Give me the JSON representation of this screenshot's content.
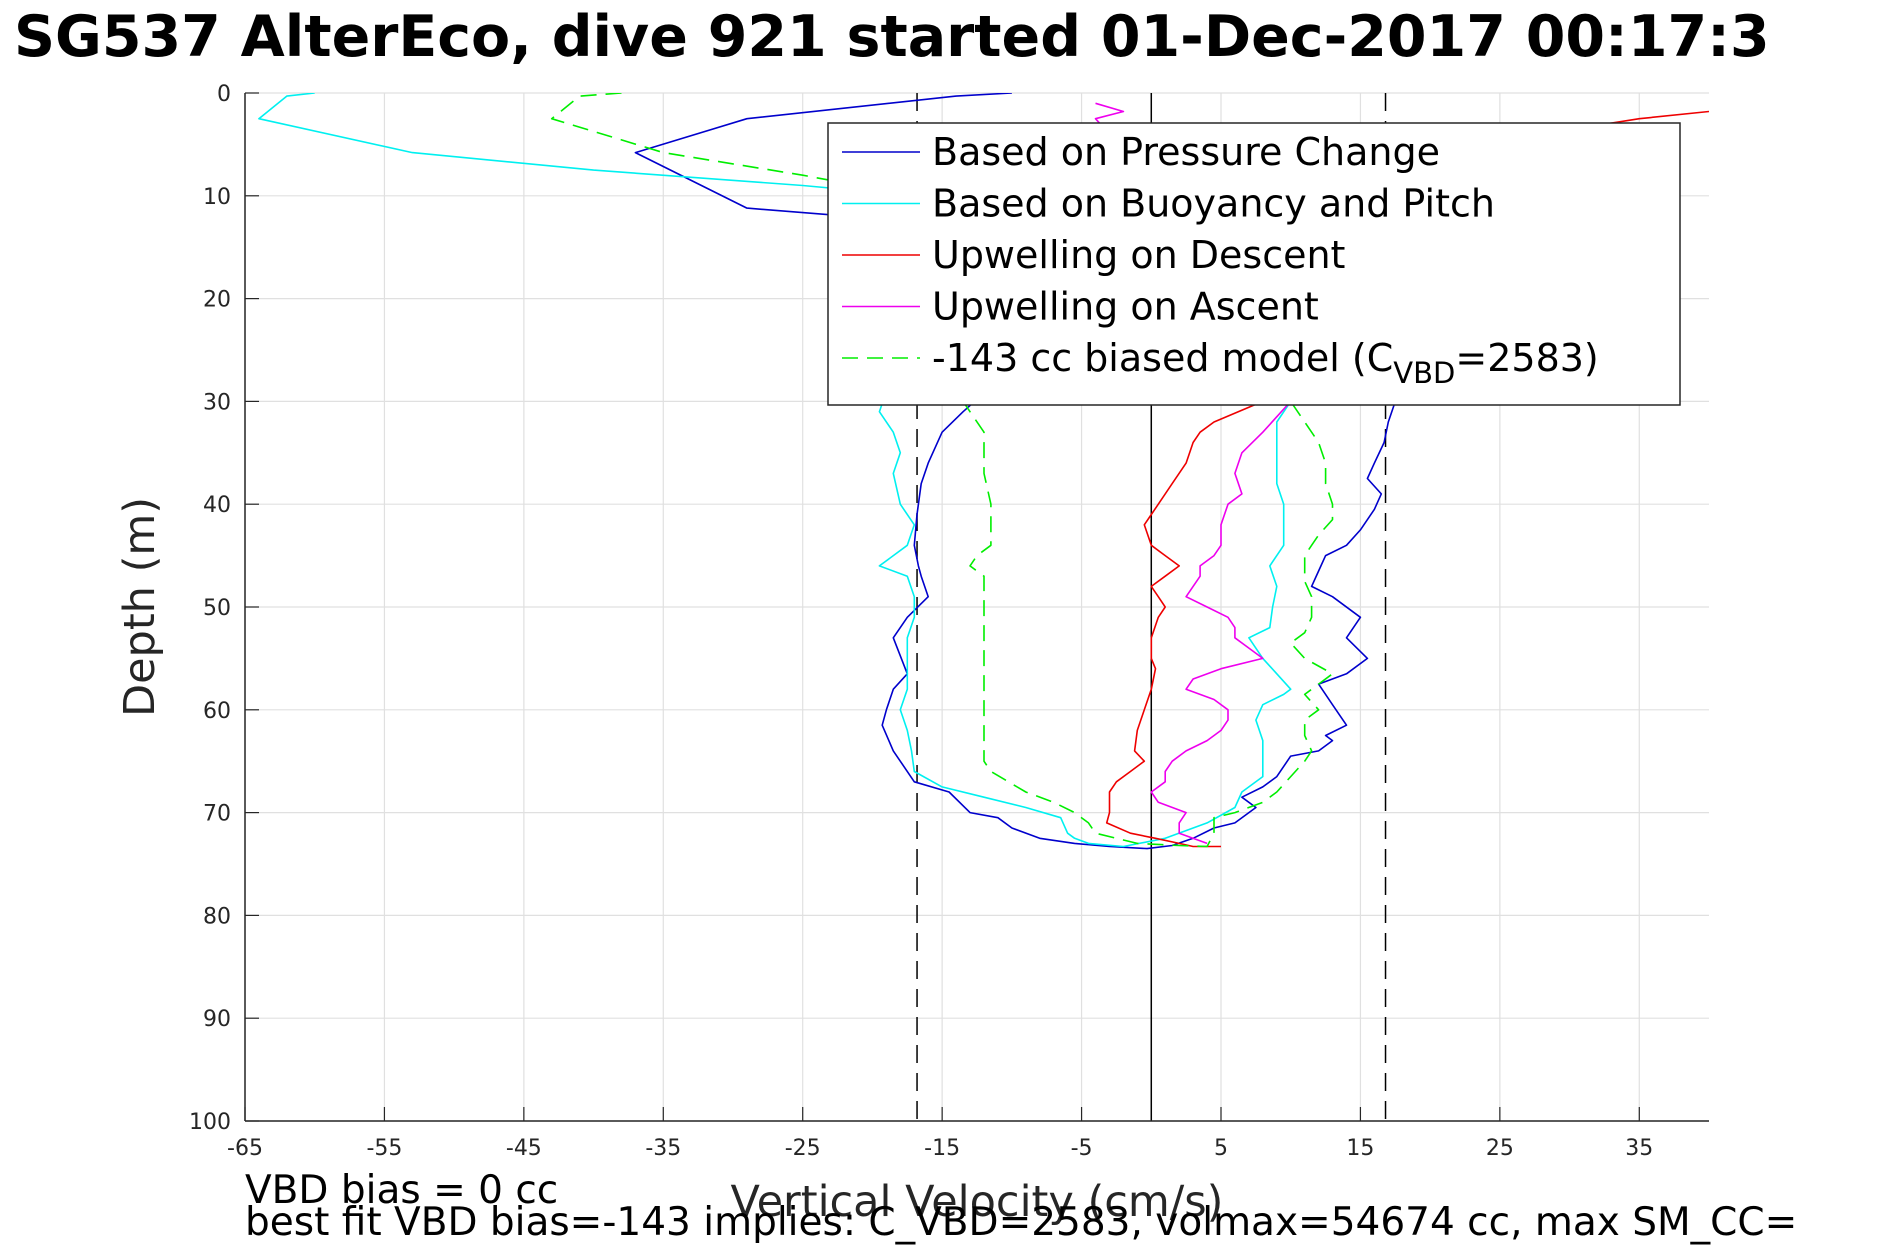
{
  "figure": {
    "title": "SG537 AlterEco, dive 921 started 01-Dec-2017 00:17:3",
    "footnote_1": "VBD bias = 0 cc",
    "footnote_2": "best fit VBD bias=-143 implies: C_VBD=2583, volmax=54674 cc, max SM_CC="
  },
  "chart_data": {
    "type": "line",
    "xlabel": "Vertical Velocity (cm/s)",
    "ylabel": "Depth (m)",
    "xlim": [
      -65,
      40
    ],
    "ylim": [
      0,
      100
    ],
    "y_reversed": true,
    "grid": true,
    "legend_position": "top-right",
    "xticks": [
      -65,
      -55,
      -45,
      -35,
      -25,
      -15,
      -5,
      5,
      15,
      25,
      35
    ],
    "yticks": [
      0,
      10,
      20,
      30,
      40,
      50,
      60,
      70,
      80,
      90,
      100
    ],
    "reference_lines": [
      {
        "x": -16.8,
        "style": "dashed",
        "color": "#000000"
      },
      {
        "x": 0,
        "style": "solid",
        "color": "#000000"
      },
      {
        "x": 16.8,
        "style": "dashed",
        "color": "#000000"
      }
    ],
    "series": [
      {
        "name": "Based on Pressure Change",
        "color": "#0000cc",
        "dash": "solid",
        "points": [
          [
            -10,
            0
          ],
          [
            -14,
            0.3
          ],
          [
            -29,
            2.5
          ],
          [
            -37,
            5.8
          ],
          [
            -29,
            11.2
          ],
          [
            -17,
            12.5
          ],
          [
            -13,
            14
          ],
          [
            -11,
            28
          ],
          [
            -13.5,
            31
          ],
          [
            -15,
            33
          ],
          [
            -16,
            36
          ],
          [
            -16.5,
            38
          ],
          [
            -16.8,
            41
          ],
          [
            -17,
            44
          ],
          [
            -16.7,
            46
          ],
          [
            -16.5,
            47
          ],
          [
            -16,
            49
          ],
          [
            -17.5,
            51
          ],
          [
            -18.5,
            53
          ],
          [
            -17.5,
            56.5
          ],
          [
            -18.5,
            58
          ],
          [
            -19,
            60
          ],
          [
            -19.3,
            61.5
          ],
          [
            -18.5,
            64
          ],
          [
            -17,
            67
          ],
          [
            -14.5,
            68
          ],
          [
            -13,
            70
          ],
          [
            -11,
            70.5
          ],
          [
            -10,
            71.5
          ],
          [
            -8,
            72.5
          ],
          [
            -5.5,
            73
          ],
          [
            -3,
            73.3
          ],
          [
            -0.3,
            73.5
          ],
          [
            1.5,
            73.2
          ],
          [
            3,
            72.5
          ],
          [
            4.5,
            71.5
          ],
          [
            6,
            71
          ],
          [
            7,
            70
          ],
          [
            7.5,
            69.5
          ],
          [
            6.5,
            68.5
          ],
          [
            8,
            67.5
          ],
          [
            9,
            66.5
          ],
          [
            10,
            64.5
          ],
          [
            12,
            64
          ],
          [
            13,
            63
          ],
          [
            12.5,
            62.5
          ],
          [
            14,
            61.5
          ],
          [
            13,
            59.5
          ],
          [
            12,
            57.5
          ],
          [
            14,
            56.5
          ],
          [
            15.5,
            55
          ],
          [
            14,
            53
          ],
          [
            15,
            51
          ],
          [
            13,
            49
          ],
          [
            11.5,
            48
          ],
          [
            12,
            46.5
          ],
          [
            12.5,
            45
          ],
          [
            14,
            44
          ],
          [
            15,
            42.5
          ],
          [
            16,
            40.5
          ],
          [
            16.5,
            39
          ],
          [
            15.5,
            37.5
          ],
          [
            16,
            36
          ],
          [
            16.7,
            34
          ],
          [
            17,
            32
          ],
          [
            17.5,
            30
          ]
        ]
      },
      {
        "name": "Based on Buoyancy and Pitch",
        "color": "#00f0f0",
        "dash": "solid",
        "points": [
          [
            -60,
            0
          ],
          [
            -62,
            0.3
          ],
          [
            -64,
            2.5
          ],
          [
            -53,
            5.8
          ],
          [
            -40,
            7.5
          ],
          [
            -25,
            9
          ],
          [
            -17,
            10
          ],
          [
            -12,
            11
          ],
          [
            -16,
            27
          ],
          [
            -19,
            29
          ],
          [
            -19.5,
            31
          ],
          [
            -18.5,
            33
          ],
          [
            -18,
            35
          ],
          [
            -18.5,
            37
          ],
          [
            -18,
            40
          ],
          [
            -17,
            42
          ],
          [
            -17.5,
            44
          ],
          [
            -19.5,
            46
          ],
          [
            -17.5,
            47
          ],
          [
            -17,
            49
          ],
          [
            -17,
            51
          ],
          [
            -17.5,
            53
          ],
          [
            -17.5,
            56
          ],
          [
            -17.5,
            58
          ],
          [
            -18,
            60
          ],
          [
            -17.5,
            62
          ],
          [
            -17.2,
            64
          ],
          [
            -17,
            66
          ],
          [
            -15,
            67.5
          ],
          [
            -12,
            68.5
          ],
          [
            -9,
            69.5
          ],
          [
            -6.5,
            70.5
          ],
          [
            -6,
            72
          ],
          [
            -5.5,
            72.5
          ],
          [
            -4.5,
            73
          ],
          [
            -2,
            73.3
          ],
          [
            1,
            72.5
          ],
          [
            4,
            71
          ],
          [
            6,
            69.5
          ],
          [
            6.5,
            68
          ],
          [
            8,
            66.5
          ],
          [
            8,
            64.5
          ],
          [
            8,
            63
          ],
          [
            7.5,
            61
          ],
          [
            8,
            59.5
          ],
          [
            9.5,
            58.5
          ],
          [
            10,
            58
          ],
          [
            9,
            56.5
          ],
          [
            8,
            55
          ],
          [
            7,
            53
          ],
          [
            8.5,
            52
          ],
          [
            8.7,
            50
          ],
          [
            9,
            48
          ],
          [
            8.5,
            46
          ],
          [
            9.5,
            44
          ],
          [
            9.5,
            42
          ],
          [
            9.5,
            40
          ],
          [
            9,
            38
          ],
          [
            9,
            36
          ],
          [
            9,
            34
          ],
          [
            9,
            32
          ],
          [
            10,
            30
          ]
        ]
      },
      {
        "name": "Upwelling on Descent",
        "color": "#ee0000",
        "dash": "solid",
        "points": [
          [
            40,
            1.8
          ],
          [
            35,
            2.5
          ],
          [
            28,
            4
          ],
          [
            22,
            6.5
          ],
          [
            16,
            15
          ],
          [
            8,
            30
          ],
          [
            4.5,
            32
          ],
          [
            3.5,
            33
          ],
          [
            3,
            34
          ],
          [
            2.5,
            36
          ],
          [
            1.5,
            38
          ],
          [
            0.5,
            40
          ],
          [
            0,
            41
          ],
          [
            -0.5,
            42
          ],
          [
            0,
            44
          ],
          [
            1,
            45
          ],
          [
            2,
            46
          ],
          [
            1,
            47
          ],
          [
            0,
            48
          ],
          [
            0.5,
            49
          ],
          [
            1,
            50
          ],
          [
            0.5,
            51
          ],
          [
            0,
            53
          ],
          [
            0,
            55
          ],
          [
            0.3,
            56
          ],
          [
            0,
            58
          ],
          [
            -0.5,
            60
          ],
          [
            -1,
            62
          ],
          [
            -1.2,
            64
          ],
          [
            -0.5,
            65
          ],
          [
            -1.5,
            66
          ],
          [
            -2.5,
            67
          ],
          [
            -3,
            68
          ],
          [
            -3,
            69
          ],
          [
            -3,
            70
          ],
          [
            -3.2,
            71
          ],
          [
            -1.5,
            72
          ],
          [
            0.3,
            72.5
          ],
          [
            2,
            73
          ],
          [
            3,
            73.3
          ],
          [
            5,
            73.3
          ]
        ]
      },
      {
        "name": "Upwelling on Ascent",
        "color": "#ee00ee",
        "dash": "solid",
        "points": [
          [
            -4,
            1
          ],
          [
            -2,
            1.8
          ],
          [
            -4,
            2.5
          ],
          [
            -3,
            4
          ],
          [
            0,
            20
          ],
          [
            10,
            30
          ],
          [
            8,
            33
          ],
          [
            6.5,
            35
          ],
          [
            6,
            37
          ],
          [
            6.5,
            39
          ],
          [
            5.5,
            40
          ],
          [
            5,
            42
          ],
          [
            5,
            44
          ],
          [
            4.5,
            45
          ],
          [
            3.5,
            46
          ],
          [
            3.5,
            47
          ],
          [
            3,
            48
          ],
          [
            2.5,
            49
          ],
          [
            4,
            50
          ],
          [
            5.5,
            51
          ],
          [
            6,
            52
          ],
          [
            6,
            53
          ],
          [
            7,
            54
          ],
          [
            8,
            55
          ],
          [
            5,
            56
          ],
          [
            3,
            57
          ],
          [
            2.5,
            58
          ],
          [
            4.5,
            59
          ],
          [
            5.5,
            60
          ],
          [
            5.5,
            61
          ],
          [
            5,
            62
          ],
          [
            4,
            63
          ],
          [
            2.5,
            64
          ],
          [
            1.5,
            65
          ],
          [
            1,
            66
          ],
          [
            1,
            67
          ],
          [
            0,
            68
          ],
          [
            0.5,
            69
          ],
          [
            2.5,
            70
          ],
          [
            2,
            71
          ],
          [
            2,
            72
          ],
          [
            4,
            73
          ]
        ]
      },
      {
        "name": "-143 cc biased model (C",
        "name_subscript": "VBD",
        "name_suffix": "=2583)",
        "color": "#00ee00",
        "dash": "dashed",
        "points": [
          [
            -38,
            0
          ],
          [
            -41,
            0.3
          ],
          [
            -43,
            2.5
          ],
          [
            -35,
            5.8
          ],
          [
            -25,
            8
          ],
          [
            -17,
            10
          ],
          [
            -13,
            11
          ],
          [
            -14,
            28
          ],
          [
            -13.5,
            30
          ],
          [
            -13,
            31
          ],
          [
            -12,
            33
          ],
          [
            -12,
            35
          ],
          [
            -12,
            37
          ],
          [
            -11.5,
            40
          ],
          [
            -11.5,
            42
          ],
          [
            -11.5,
            44
          ],
          [
            -12.5,
            45
          ],
          [
            -13,
            46
          ],
          [
            -12,
            47
          ],
          [
            -12,
            49
          ],
          [
            -12,
            51
          ],
          [
            -12,
            53
          ],
          [
            -12,
            55
          ],
          [
            -12,
            57
          ],
          [
            -12,
            59
          ],
          [
            -12,
            61
          ],
          [
            -12,
            63
          ],
          [
            -12,
            65
          ],
          [
            -11.5,
            66
          ],
          [
            -9,
            68
          ],
          [
            -7,
            69
          ],
          [
            -5.5,
            70
          ],
          [
            -4.5,
            71
          ],
          [
            -4,
            72
          ],
          [
            -1,
            73
          ],
          [
            2,
            73.2
          ],
          [
            4,
            73.3
          ],
          [
            4.5,
            72
          ],
          [
            4.5,
            70.5
          ],
          [
            6,
            70
          ],
          [
            8,
            69
          ],
          [
            9,
            68
          ],
          [
            10,
            66.5
          ],
          [
            11,
            65
          ],
          [
            11.5,
            64
          ],
          [
            11,
            62.5
          ],
          [
            11,
            61
          ],
          [
            12,
            60
          ],
          [
            11,
            58.5
          ],
          [
            12,
            57.5
          ],
          [
            13,
            56.5
          ],
          [
            11,
            55
          ],
          [
            10,
            53.5
          ],
          [
            11,
            52.5
          ],
          [
            11.5,
            51
          ],
          [
            11.5,
            49
          ],
          [
            11,
            47.5
          ],
          [
            11,
            46
          ],
          [
            11,
            45
          ],
          [
            11.5,
            44
          ],
          [
            12,
            43
          ],
          [
            13,
            41.5
          ],
          [
            13,
            40
          ],
          [
            12.5,
            38
          ],
          [
            12.5,
            36
          ],
          [
            12,
            34
          ],
          [
            11,
            32
          ],
          [
            10,
            30
          ]
        ]
      }
    ]
  }
}
